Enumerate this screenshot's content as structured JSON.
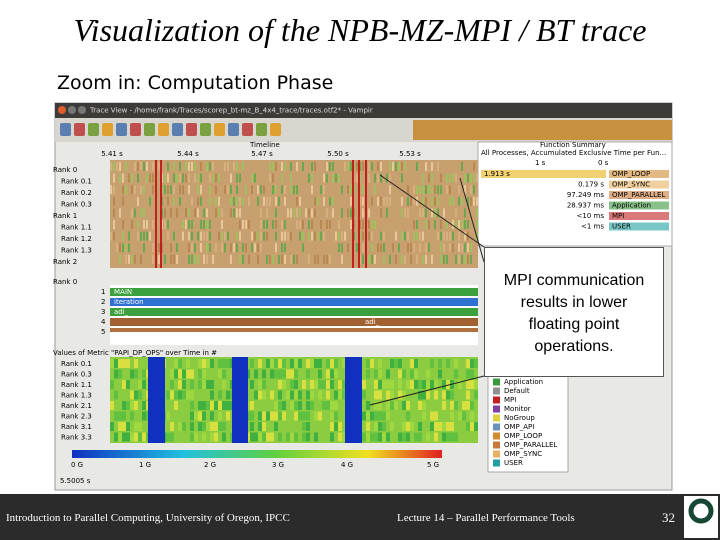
{
  "title": "Visualization of the NPB-MZ-MPI / BT trace",
  "subtitle": "Zoom in: Computation Phase",
  "window": {
    "title": "Trace View - /home/frank/Traces/scorep_bt-mz_B_4x4_trace/traces.otf2* - Vampir",
    "timeline": {
      "label": "Timeline",
      "ticks": [
        "5.41 s",
        "5.44 s",
        "5.47 s",
        "5.50 s",
        "5.53 s"
      ]
    },
    "ranks_top": [
      "Rank 0",
      "Rank 0.1",
      "Rank 0.2",
      "Rank 0.3",
      "Rank 1",
      "Rank 1.1",
      "Rank 1.2",
      "Rank 1.3",
      "Rank 2"
    ],
    "function_summary": {
      "label": "Function Summary",
      "heading": "All Processes, Accumulated Exclusive Time per Fun...",
      "axis": [
        "1 s",
        "0 s"
      ],
      "rows": [
        {
          "value": "1.913 s",
          "name": "OMP_LOOP"
        },
        {
          "value": "0.179 s",
          "name": "OMP_SYNC"
        },
        {
          "value": "97.249 ms",
          "name": "OMP_PARALLEL"
        },
        {
          "value": "28.937 ms",
          "name": "Application"
        },
        {
          "value": "<10 ms",
          "name": "MPI"
        },
        {
          "value": "<1 ms",
          "name": "USER"
        }
      ]
    },
    "process_timeline": {
      "label": "Rank 0",
      "levels": [
        "1",
        "2",
        "3",
        "4",
        "5"
      ],
      "labels": [
        "MAIN",
        "iteration",
        "adi_",
        "adi_"
      ]
    },
    "counter": {
      "label": "Values of Metric \"PAPI_DP_OPS\" over Time in #",
      "ranks": [
        "Rank 0.1",
        "Rank 0.3",
        "Rank 1.1",
        "Rank 1.3",
        "Rank 2.1",
        "Rank 2.3",
        "Rank 3.1",
        "Rank 3.3"
      ],
      "scale": [
        "0 G",
        "1 G",
        "2 G",
        "3 G",
        "4 G",
        "5 G"
      ]
    },
    "legend": [
      "Application",
      "Default",
      "MPI",
      "Monitor",
      "NoGroup",
      "OMP_API",
      "OMP_LOOP",
      "OMP_PARALLEL",
      "OMP_SYNC",
      "USER"
    ],
    "status": "5.5005 s"
  },
  "callout": "MPI communication results in lower floating point operations.",
  "footer": {
    "left": "Introduction to Parallel Computing, University of Oregon, IPCC",
    "center": "Lecture 14 – Parallel Performance Tools",
    "page": "32"
  }
}
